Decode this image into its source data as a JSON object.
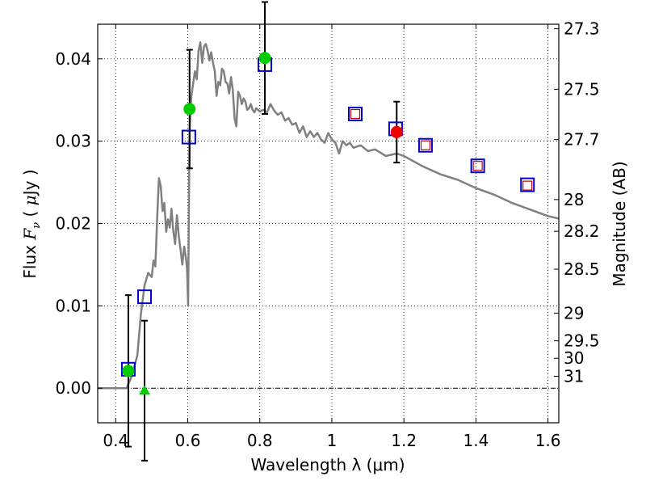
{
  "chart_data": {
    "type": "scatter",
    "title": "",
    "xlabel": "Wavelength  λ (μm)",
    "ylabel_left": "Flux  F_ν ( μJy )",
    "ylabel_right": "Magnitude (AB)",
    "xlim": [
      0.35,
      1.63
    ],
    "ylim": [
      -0.0042,
      0.0442
    ],
    "grid": true,
    "xticks": [
      {
        "value": 0.4,
        "label": "0.4"
      },
      {
        "value": 0.6,
        "label": "0.6"
      },
      {
        "value": 0.8,
        "label": "0.8"
      },
      {
        "value": 1.0,
        "label": "1"
      },
      {
        "value": 1.2,
        "label": "1.2"
      },
      {
        "value": 1.4,
        "label": "1.4"
      },
      {
        "value": 1.6,
        "label": "1.6"
      }
    ],
    "yticks": [
      {
        "value": 0.0,
        "label": "0.00"
      },
      {
        "value": 0.01,
        "label": "0.01"
      },
      {
        "value": 0.02,
        "label": "0.02"
      },
      {
        "value": 0.03,
        "label": "0.03"
      },
      {
        "value": 0.04,
        "label": "0.04"
      }
    ],
    "mag_ticks": [
      {
        "mag": 27.3,
        "label": "27.3"
      },
      {
        "mag": 27.5,
        "label": "27.5"
      },
      {
        "mag": 27.7,
        "label": "27.7"
      },
      {
        "mag": 28.0,
        "label": "28"
      },
      {
        "mag": 28.2,
        "label": "28.2"
      },
      {
        "mag": 28.5,
        "label": "28.5"
      },
      {
        "mag": 29.0,
        "label": "29"
      },
      {
        "mag": 29.5,
        "label": "29.5"
      },
      {
        "mag": 30.0,
        "label": "30"
      },
      {
        "mag": 31.0,
        "label": "31"
      }
    ],
    "zero_line": 0.0,
    "model_spectrum": {
      "name": "model SED",
      "color": "#808080",
      "x": [
        0.35,
        0.43,
        0.445,
        0.46,
        0.47,
        0.48,
        0.49,
        0.5,
        0.505,
        0.51,
        0.515,
        0.52,
        0.525,
        0.53,
        0.535,
        0.54,
        0.545,
        0.55,
        0.555,
        0.56,
        0.565,
        0.57,
        0.575,
        0.58,
        0.585,
        0.59,
        0.595,
        0.598,
        0.601,
        0.603,
        0.605,
        0.607,
        0.61,
        0.615,
        0.62,
        0.625,
        0.63,
        0.635,
        0.64,
        0.645,
        0.65,
        0.655,
        0.66,
        0.665,
        0.67,
        0.675,
        0.68,
        0.685,
        0.69,
        0.695,
        0.7,
        0.705,
        0.71,
        0.715,
        0.72,
        0.725,
        0.73,
        0.735,
        0.74,
        0.745,
        0.75,
        0.755,
        0.76,
        0.765,
        0.77,
        0.775,
        0.78,
        0.785,
        0.79,
        0.8,
        0.81,
        0.82,
        0.83,
        0.84,
        0.85,
        0.86,
        0.87,
        0.88,
        0.89,
        0.9,
        0.91,
        0.92,
        0.93,
        0.94,
        0.95,
        0.96,
        0.97,
        0.98,
        0.99,
        1.0,
        1.01,
        1.02,
        1.03,
        1.04,
        1.05,
        1.06,
        1.08,
        1.1,
        1.12,
        1.15,
        1.18,
        1.2,
        1.25,
        1.3,
        1.35,
        1.4,
        1.45,
        1.5,
        1.55,
        1.6,
        1.63
      ],
      "y": [
        0.0,
        0.0,
        0.0015,
        0.004,
        0.009,
        0.0125,
        0.014,
        0.0135,
        0.0155,
        0.0148,
        0.0205,
        0.0255,
        0.0245,
        0.0215,
        0.0225,
        0.019,
        0.0205,
        0.0195,
        0.0218,
        0.019,
        0.0175,
        0.021,
        0.0185,
        0.0168,
        0.015,
        0.0172,
        0.0158,
        0.0145,
        0.01,
        0.022,
        0.031,
        0.033,
        0.0355,
        0.037,
        0.0385,
        0.0375,
        0.041,
        0.042,
        0.0395,
        0.0415,
        0.0418,
        0.041,
        0.0398,
        0.0408,
        0.0395,
        0.0385,
        0.0355,
        0.0372,
        0.0368,
        0.0388,
        0.0385,
        0.0372,
        0.037,
        0.0358,
        0.0378,
        0.0362,
        0.0328,
        0.0318,
        0.036,
        0.0355,
        0.0345,
        0.0352,
        0.0348,
        0.0338,
        0.034,
        0.0345,
        0.0338,
        0.0335,
        0.034,
        0.0336,
        0.0338,
        0.0335,
        0.0345,
        0.0337,
        0.0332,
        0.0335,
        0.0325,
        0.0328,
        0.032,
        0.0322,
        0.031,
        0.0318,
        0.0305,
        0.0312,
        0.0305,
        0.031,
        0.0302,
        0.0298,
        0.031,
        0.0302,
        0.0298,
        0.0285,
        0.03,
        0.0295,
        0.0298,
        0.0292,
        0.0295,
        0.0288,
        0.029,
        0.0282,
        0.0285,
        0.0282,
        0.027,
        0.026,
        0.0253,
        0.0243,
        0.0235,
        0.0225,
        0.0217,
        0.0209,
        0.0206
      ]
    },
    "series": [
      {
        "name": "observed (blue squares)",
        "marker": "open-square",
        "color": "#0000cc",
        "points": [
          {
            "x": 0.435,
            "y": 0.0023
          },
          {
            "x": 0.48,
            "y": 0.0111
          },
          {
            "x": 0.603,
            "y": 0.0305
          },
          {
            "x": 0.814,
            "y": 0.0393
          },
          {
            "x": 1.065,
            "y": 0.0333
          },
          {
            "x": 1.177,
            "y": 0.0315
          },
          {
            "x": 1.26,
            "y": 0.0295
          },
          {
            "x": 1.405,
            "y": 0.027
          },
          {
            "x": 1.543,
            "y": 0.0247
          }
        ]
      },
      {
        "name": "model (red squares)",
        "marker": "small-open-square",
        "color": "#cc0000",
        "points": [
          {
            "x": 1.065,
            "y": 0.0333
          },
          {
            "x": 1.26,
            "y": 0.0295
          },
          {
            "x": 1.405,
            "y": 0.027
          },
          {
            "x": 1.543,
            "y": 0.0246
          }
        ]
      },
      {
        "name": "green detections",
        "marker": "filled-circle",
        "color": "#00cc00",
        "points": [
          {
            "x": 0.435,
            "y": 0.0021,
            "err": 0.0092
          },
          {
            "x": 0.605,
            "y": 0.0339,
            "err": 0.0072
          },
          {
            "x": 0.814,
            "y": 0.0401,
            "err": 0.0068
          }
        ]
      },
      {
        "name": "green upper limit",
        "marker": "filled-triangle",
        "color": "#00cc00",
        "points": [
          {
            "x": 0.48,
            "y": -0.0003,
            "err": 0.0085
          }
        ]
      },
      {
        "name": "red detection",
        "marker": "filled-circle",
        "color": "#ee0000",
        "points": [
          {
            "x": 1.18,
            "y": 0.0311,
            "err": 0.0037
          }
        ]
      }
    ]
  }
}
